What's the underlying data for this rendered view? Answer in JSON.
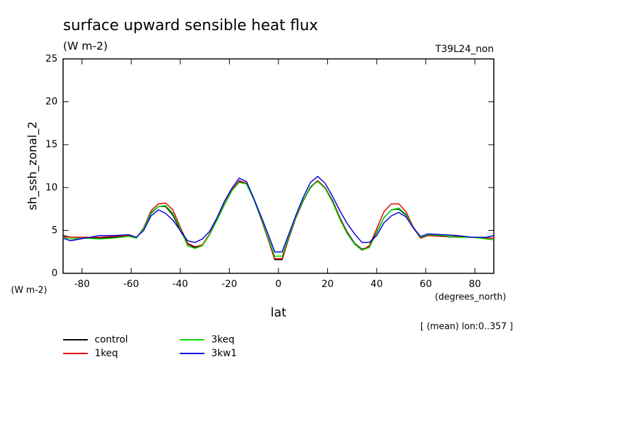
{
  "chart_data": {
    "type": "line",
    "title": "surface upward sensible heat flux",
    "subtitle": "(W m-2)",
    "run_label": "T39L24_non",
    "ylabel": "sh_ssh_zonal_2",
    "yunits": "(W m-2)",
    "xlabel": "lat",
    "xunits": "(degrees_north)",
    "footnote": "[ (mean) lon:0..357 ]",
    "x": [
      -87.7,
      -84.7,
      -78.8,
      -72.8,
      -66.9,
      -60.9,
      -57.9,
      -54.9,
      -51.9,
      -48.9,
      -46.0,
      -43.0,
      -40.0,
      -37.0,
      -34.0,
      -31.0,
      -28.0,
      -25.0,
      -22.0,
      -19.0,
      -16.0,
      -13.0,
      -10.0,
      -7.0,
      -4.0,
      -1.5,
      1.5,
      4.0,
      7.0,
      10.0,
      13.0,
      16.0,
      19.0,
      22.0,
      25.0,
      28.0,
      31.0,
      34.0,
      37.0,
      40.0,
      43.0,
      46.0,
      49.0,
      51.9,
      54.9,
      57.9,
      60.9,
      66.9,
      72.8,
      78.8,
      84.7,
      87.7
    ],
    "series": [
      {
        "name": "control",
        "color": "#000000",
        "values": [
          4.4,
          4.2,
          4.2,
          4.1,
          4.2,
          4.4,
          4.1,
          5.2,
          7.0,
          7.8,
          7.8,
          6.8,
          5.0,
          3.4,
          3.0,
          3.3,
          4.6,
          6.2,
          8.0,
          9.6,
          10.7,
          10.4,
          8.6,
          6.3,
          3.8,
          1.6,
          1.6,
          3.9,
          6.4,
          8.4,
          10.0,
          10.8,
          10.0,
          8.5,
          6.5,
          4.8,
          3.5,
          2.8,
          3.1,
          4.8,
          6.5,
          7.4,
          7.5,
          6.8,
          5.3,
          4.1,
          4.4,
          4.3,
          4.2,
          4.2,
          4.1,
          4.1
        ]
      },
      {
        "name": "1keq",
        "color": "#e00000",
        "values": [
          4.3,
          4.2,
          4.2,
          4.2,
          4.3,
          4.4,
          4.1,
          5.3,
          7.3,
          8.1,
          8.2,
          7.4,
          5.4,
          3.5,
          3.1,
          3.3,
          4.6,
          6.3,
          8.1,
          9.7,
          10.8,
          10.5,
          8.7,
          6.3,
          3.8,
          1.7,
          1.7,
          3.9,
          6.4,
          8.4,
          10.1,
          10.8,
          10.0,
          8.4,
          6.4,
          4.7,
          3.4,
          2.7,
          3.2,
          5.2,
          7.2,
          8.1,
          8.1,
          7.2,
          5.4,
          4.1,
          4.4,
          4.3,
          4.3,
          4.2,
          4.1,
          4.1
        ]
      },
      {
        "name": "3keq",
        "color": "#00dd00",
        "values": [
          4.2,
          4.0,
          4.1,
          4.0,
          4.1,
          4.3,
          4.1,
          5.2,
          7.1,
          7.8,
          7.9,
          7.0,
          5.2,
          3.2,
          2.9,
          3.2,
          4.5,
          6.2,
          8.0,
          9.6,
          10.6,
          10.4,
          8.6,
          6.4,
          4.0,
          2.0,
          2.0,
          4.1,
          6.5,
          8.5,
          10.1,
          10.7,
          9.9,
          8.3,
          6.3,
          4.6,
          3.4,
          2.7,
          3.0,
          4.7,
          6.5,
          7.4,
          7.6,
          6.9,
          5.3,
          4.2,
          4.5,
          4.4,
          4.2,
          4.2,
          4.0,
          3.9
        ]
      },
      {
        "name": "3kw1",
        "color": "#0000dd",
        "values": [
          4.1,
          3.8,
          4.1,
          4.4,
          4.4,
          4.5,
          4.2,
          5.0,
          6.7,
          7.4,
          7.0,
          6.2,
          5.0,
          3.8,
          3.6,
          4.0,
          4.9,
          6.5,
          8.4,
          9.9,
          11.1,
          10.7,
          8.7,
          6.6,
          4.4,
          2.5,
          2.5,
          4.4,
          6.7,
          8.8,
          10.6,
          11.3,
          10.5,
          9.0,
          7.3,
          5.8,
          4.6,
          3.6,
          3.6,
          4.4,
          5.9,
          6.7,
          7.1,
          6.6,
          5.3,
          4.3,
          4.6,
          4.5,
          4.4,
          4.2,
          4.2,
          4.4
        ]
      }
    ],
    "xlim": [
      -87.7,
      87.7
    ],
    "ylim": [
      0,
      25
    ],
    "xticks": [
      -80,
      -60,
      -40,
      -20,
      0,
      20,
      40,
      60,
      80
    ],
    "yticks": [
      0,
      5,
      10,
      15,
      20,
      25
    ]
  }
}
